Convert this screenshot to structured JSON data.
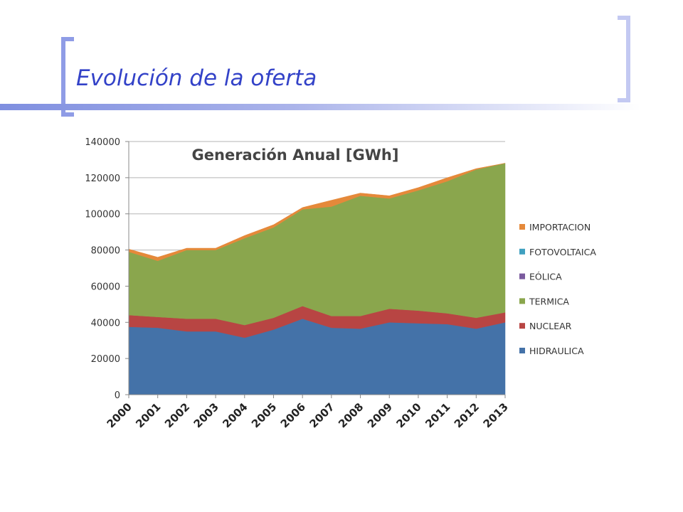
{
  "slide": {
    "title": "Evolución de la oferta"
  },
  "chart_data": {
    "type": "area",
    "stacked": true,
    "title": "Generación Anual [GWh]",
    "x": [
      "2000",
      "2001",
      "2002",
      "2003",
      "2004",
      "2005",
      "2006",
      "2007",
      "2008",
      "2009",
      "2010",
      "2011",
      "2012",
      "2013"
    ],
    "ylim": [
      0,
      140000
    ],
    "yticks": [
      0,
      20000,
      40000,
      60000,
      80000,
      100000,
      120000,
      140000
    ],
    "grid": true,
    "legend_position": "right",
    "series": [
      {
        "name": "HIDRAULICA",
        "color": "#4472a8",
        "values": [
          37500,
          37000,
          35000,
          35000,
          31500,
          36000,
          42000,
          37000,
          36500,
          40000,
          39500,
          39000,
          36500,
          40000
        ]
      },
      {
        "name": "NUCLEAR",
        "color": "#b84543",
        "values": [
          6500,
          6000,
          7000,
          7000,
          7000,
          6500,
          7000,
          6500,
          7000,
          7500,
          7000,
          6000,
          6000,
          5500
        ]
      },
      {
        "name": "TERMICA",
        "color": "#8aa64d",
        "values": [
          35000,
          31000,
          38000,
          38000,
          48000,
          50000,
          53500,
          60500,
          66500,
          61000,
          66500,
          73000,
          82000,
          82500
        ]
      },
      {
        "name": "EÓLICA",
        "color": "#7a5a9e",
        "values": [
          0,
          0,
          0,
          0,
          0,
          0,
          0,
          0,
          0,
          0,
          0,
          0,
          0,
          0
        ]
      },
      {
        "name": "FOTOVOLTAICA",
        "color": "#3fa0c0",
        "values": [
          0,
          0,
          0,
          0,
          0,
          0,
          0,
          0,
          0,
          0,
          0,
          0,
          0,
          0
        ]
      },
      {
        "name": "IMPORTACION",
        "color": "#e5893a",
        "values": [
          1500,
          2000,
          1000,
          1000,
          1500,
          1500,
          1000,
          3500,
          1500,
          1500,
          1500,
          2000,
          500,
          0
        ]
      }
    ]
  }
}
